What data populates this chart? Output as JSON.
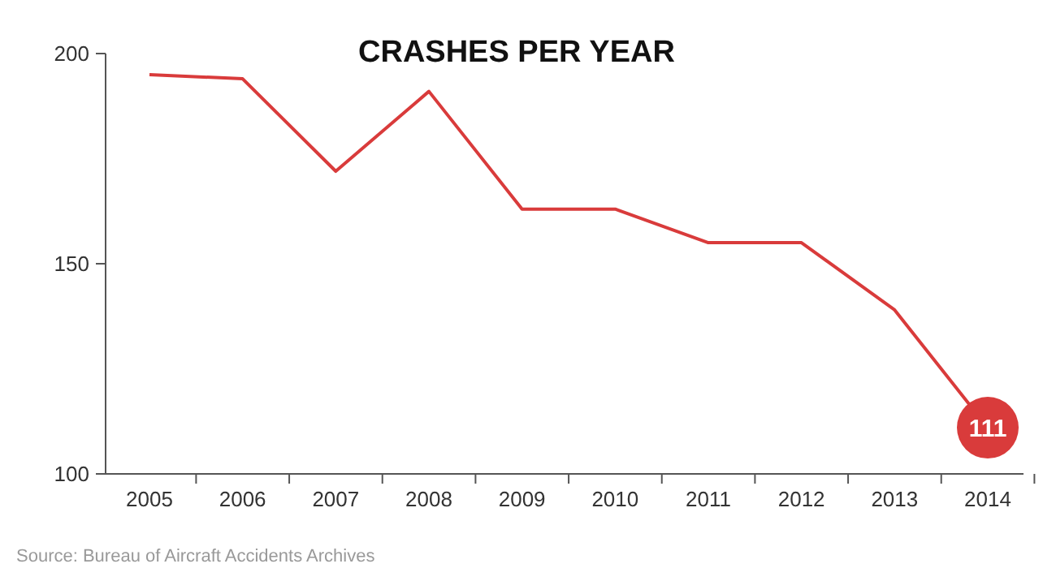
{
  "chart_data": {
    "type": "line",
    "title": "CRASHES PER YEAR",
    "categories": [
      "2005",
      "2006",
      "2007",
      "2008",
      "2009",
      "2010",
      "2011",
      "2012",
      "2013",
      "2014"
    ],
    "values": [
      195,
      194,
      172,
      191,
      163,
      163,
      155,
      155,
      139,
      111
    ],
    "value_labels": [
      null,
      null,
      null,
      null,
      null,
      null,
      null,
      null,
      null,
      "111"
    ],
    "color": "#d93b3b",
    "ylim": [
      100,
      200
    ],
    "yticks": [
      100,
      150,
      200
    ],
    "grid": false,
    "marker": "none",
    "line_style": "solid",
    "annotations": [
      "Source: Bureau of Aircraft Accidents Archives"
    ]
  }
}
